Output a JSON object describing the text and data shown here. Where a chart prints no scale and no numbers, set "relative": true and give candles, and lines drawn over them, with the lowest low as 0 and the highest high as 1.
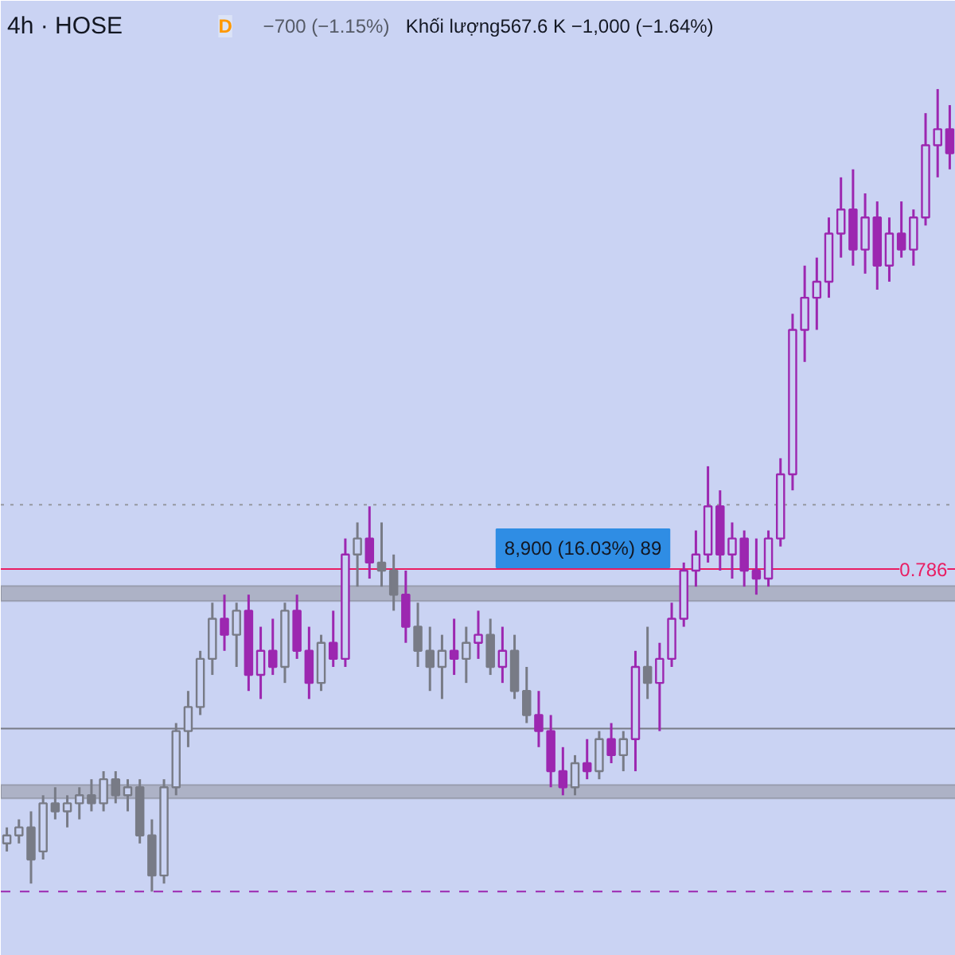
{
  "chart_data": {
    "type": "candlestick",
    "relative": true,
    "title": "4h · HOSE",
    "annotations": [
      "D",
      "−700 (−1.15%)",
      "Khối lượng567.6 K −1,000 (−1.64%)",
      "8,900 (16.03%) 89",
      "0.786"
    ],
    "categories": [
      null,
      null,
      null,
      null,
      null,
      null,
      null,
      null,
      null,
      null,
      null,
      null,
      null,
      null,
      null,
      null,
      null,
      null,
      null,
      null,
      null,
      null,
      null,
      null,
      null,
      null,
      null,
      null,
      null,
      null,
      null,
      null,
      null,
      null,
      null,
      null,
      null,
      null,
      null,
      null,
      null,
      null,
      null,
      null,
      null,
      null,
      null,
      null,
      null,
      null,
      null,
      null,
      null,
      null,
      null,
      null,
      null,
      null,
      null,
      null,
      null,
      null,
      null,
      null,
      null,
      null,
      null,
      null,
      null,
      null,
      null,
      null,
      null,
      null,
      null,
      null,
      null,
      null,
      null
    ],
    "ohlc": [
      [
        0.06,
        0.08,
        0.05,
        0.07
      ],
      [
        0.07,
        0.09,
        0.06,
        0.08
      ],
      [
        0.08,
        0.1,
        0.01,
        0.04
      ],
      [
        0.05,
        0.12,
        0.04,
        0.11
      ],
      [
        0.11,
        0.13,
        0.09,
        0.1
      ],
      [
        0.1,
        0.12,
        0.08,
        0.11
      ],
      [
        0.11,
        0.13,
        0.09,
        0.12
      ],
      [
        0.12,
        0.14,
        0.1,
        0.11
      ],
      [
        0.11,
        0.15,
        0.1,
        0.14
      ],
      [
        0.14,
        0.15,
        0.11,
        0.12
      ],
      [
        0.12,
        0.14,
        0.1,
        0.13
      ],
      [
        0.13,
        0.14,
        0.06,
        0.07
      ],
      [
        0.07,
        0.09,
        0.0,
        0.02
      ],
      [
        0.02,
        0.14,
        0.01,
        0.13
      ],
      [
        0.13,
        0.21,
        0.12,
        0.2
      ],
      [
        0.2,
        0.25,
        0.18,
        0.23
      ],
      [
        0.23,
        0.3,
        0.22,
        0.29
      ],
      [
        0.29,
        0.36,
        0.27,
        0.34
      ],
      [
        0.34,
        0.37,
        0.3,
        0.32
      ],
      [
        0.32,
        0.36,
        0.28,
        0.35
      ],
      [
        0.35,
        0.37,
        0.25,
        0.27
      ],
      [
        0.27,
        0.33,
        0.24,
        0.3
      ],
      [
        0.3,
        0.34,
        0.27,
        0.28
      ],
      [
        0.28,
        0.36,
        0.26,
        0.35
      ],
      [
        0.35,
        0.37,
        0.29,
        0.3
      ],
      [
        0.3,
        0.33,
        0.24,
        0.26
      ],
      [
        0.26,
        0.32,
        0.25,
        0.31
      ],
      [
        0.31,
        0.35,
        0.28,
        0.29
      ],
      [
        0.29,
        0.44,
        0.28,
        0.42
      ],
      [
        0.42,
        0.46,
        0.38,
        0.44
      ],
      [
        0.44,
        0.48,
        0.39,
        0.41
      ],
      [
        0.41,
        0.46,
        0.38,
        0.4
      ],
      [
        0.4,
        0.42,
        0.35,
        0.37
      ],
      [
        0.37,
        0.4,
        0.31,
        0.33
      ],
      [
        0.33,
        0.36,
        0.28,
        0.3
      ],
      [
        0.3,
        0.33,
        0.25,
        0.28
      ],
      [
        0.28,
        0.32,
        0.24,
        0.3
      ],
      [
        0.3,
        0.34,
        0.27,
        0.29
      ],
      [
        0.29,
        0.33,
        0.26,
        0.31
      ],
      [
        0.31,
        0.35,
        0.29,
        0.32
      ],
      [
        0.32,
        0.34,
        0.27,
        0.28
      ],
      [
        0.28,
        0.33,
        0.26,
        0.3
      ],
      [
        0.3,
        0.32,
        0.24,
        0.25
      ],
      [
        0.25,
        0.28,
        0.21,
        0.22
      ],
      [
        0.22,
        0.25,
        0.18,
        0.2
      ],
      [
        0.2,
        0.22,
        0.13,
        0.15
      ],
      [
        0.15,
        0.18,
        0.12,
        0.13
      ],
      [
        0.13,
        0.17,
        0.12,
        0.16
      ],
      [
        0.16,
        0.19,
        0.14,
        0.15
      ],
      [
        0.15,
        0.2,
        0.14,
        0.19
      ],
      [
        0.19,
        0.21,
        0.16,
        0.17
      ],
      [
        0.17,
        0.2,
        0.15,
        0.19
      ],
      [
        0.19,
        0.3,
        0.15,
        0.28
      ],
      [
        0.28,
        0.33,
        0.24,
        0.26
      ],
      [
        0.26,
        0.31,
        0.2,
        0.29
      ],
      [
        0.29,
        0.36,
        0.28,
        0.34
      ],
      [
        0.34,
        0.41,
        0.33,
        0.4
      ],
      [
        0.4,
        0.45,
        0.38,
        0.42
      ],
      [
        0.42,
        0.53,
        0.41,
        0.48
      ],
      [
        0.48,
        0.5,
        0.4,
        0.42
      ],
      [
        0.42,
        0.46,
        0.39,
        0.44
      ],
      [
        0.44,
        0.45,
        0.38,
        0.4
      ],
      [
        0.4,
        0.44,
        0.37,
        0.39
      ],
      [
        0.39,
        0.45,
        0.38,
        0.44
      ],
      [
        0.44,
        0.54,
        0.43,
        0.52
      ],
      [
        0.52,
        0.72,
        0.5,
        0.7
      ],
      [
        0.7,
        0.78,
        0.66,
        0.74
      ],
      [
        0.74,
        0.79,
        0.7,
        0.76
      ],
      [
        0.76,
        0.84,
        0.74,
        0.82
      ],
      [
        0.82,
        0.89,
        0.79,
        0.85
      ],
      [
        0.85,
        0.9,
        0.78,
        0.8
      ],
      [
        0.8,
        0.87,
        0.77,
        0.84
      ],
      [
        0.84,
        0.86,
        0.75,
        0.78
      ],
      [
        0.78,
        0.84,
        0.76,
        0.82
      ],
      [
        0.82,
        0.86,
        0.79,
        0.8
      ],
      [
        0.8,
        0.85,
        0.78,
        0.84
      ],
      [
        0.84,
        0.97,
        0.83,
        0.93
      ],
      [
        0.93,
        1.0,
        0.89,
        0.95
      ],
      [
        0.95,
        0.98,
        0.9,
        0.92
      ]
    ],
    "colors": [
      "#787b86",
      "#787b86",
      "#787b86",
      "#787b86",
      "#787b86",
      "#787b86",
      "#787b86",
      "#787b86",
      "#787b86",
      "#787b86",
      "#787b86",
      "#787b86",
      "#787b86",
      "#787b86",
      "#787b86",
      "#787b86",
      "#787b86",
      "#787b86",
      "#9c27b0",
      "#787b86",
      "#9c27b0",
      "#9c27b0",
      "#9c27b0",
      "#787b86",
      "#9c27b0",
      "#9c27b0",
      "#787b86",
      "#9c27b0",
      "#9c27b0",
      "#787b86",
      "#9c27b0",
      "#787b86",
      "#787b86",
      "#9c27b0",
      "#787b86",
      "#787b86",
      "#787b86",
      "#9c27b0",
      "#787b86",
      "#9c27b0",
      "#787b86",
      "#9c27b0",
      "#787b86",
      "#787b86",
      "#9c27b0",
      "#9c27b0",
      "#9c27b0",
      "#787b86",
      "#9c27b0",
      "#787b86",
      "#9c27b0",
      "#787b86",
      "#9c27b0",
      "#787b86",
      "#9c27b0",
      "#9c27b0",
      "#9c27b0",
      "#9c27b0",
      "#9c27b0",
      "#9c27b0",
      "#9c27b0",
      "#9c27b0",
      "#9c27b0",
      "#9c27b0",
      "#9c27b0",
      "#9c27b0",
      "#9c27b0",
      "#9c27b0",
      "#9c27b0",
      "#9c27b0",
      "#9c27b0",
      "#9c27b0",
      "#9c27b0",
      "#9c27b0",
      "#9c27b0",
      "#9c27b0",
      "#9c27b0",
      "#9c27b0",
      "#9c27b0"
    ],
    "bands": [
      {
        "axis": "y",
        "from": 0.362,
        "to": 0.381,
        "color": "#9598a1"
      },
      {
        "axis": "y",
        "from": 0.116,
        "to": 0.133,
        "color": "#9598a1"
      }
    ],
    "ref_lines": [
      {
        "axis": "y",
        "value": 0.402,
        "label": null,
        "color": "#e91e63",
        "line_style": "solid"
      },
      {
        "axis": "y",
        "value": 0.482,
        "label": null,
        "color": "#9598a1",
        "line_style": "dotted"
      },
      {
        "axis": "y",
        "value": 0.203,
        "label": null,
        "color": "#787b86",
        "line_style": "solid"
      },
      {
        "axis": "y",
        "value": 0.0,
        "label": null,
        "color": "#9c27b0",
        "line_style": "dashed"
      }
    ]
  }
}
